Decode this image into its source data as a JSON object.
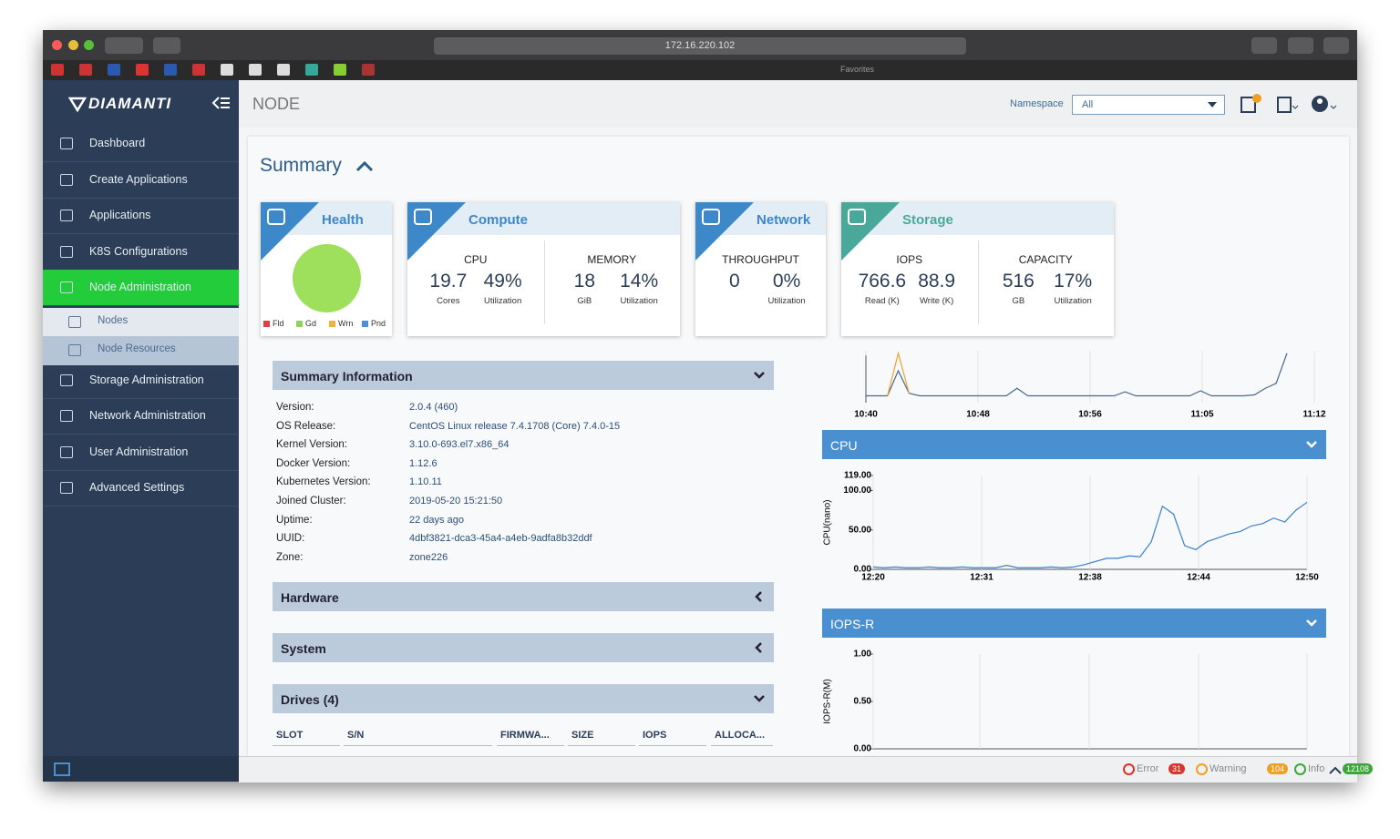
{
  "browser": {
    "url": "172.16.220.102",
    "favorites": "Favorites"
  },
  "sidebar": {
    "brand": "DIAMANTI",
    "items": [
      "Dashboard",
      "Create Applications",
      "Applications",
      "K8S Configurations",
      "Node Administration",
      "Nodes",
      "Node Resources",
      "Storage Administration",
      "Network Administration",
      "User Administration",
      "Advanced Settings"
    ]
  },
  "header": {
    "title": "NODE",
    "namespace_label": "Namespace",
    "namespace_value": "All"
  },
  "summary": {
    "title": "Summary",
    "health": {
      "title": "Health",
      "legend": [
        {
          "name": "Fld",
          "color": "#e04040"
        },
        {
          "name": "Gd",
          "color": "#8fd45a"
        },
        {
          "name": "Wrn",
          "color": "#f0b040"
        },
        {
          "name": "Pnd",
          "color": "#4a8fe0"
        }
      ]
    },
    "compute": {
      "title": "Compute",
      "groups": [
        {
          "name": "CPU",
          "stats": [
            {
              "value": "19.7",
              "unit": "Cores"
            },
            {
              "value": "49%",
              "unit": "Utilization"
            }
          ]
        },
        {
          "name": "MEMORY",
          "stats": [
            {
              "value": "18",
              "unit": "GiB"
            },
            {
              "value": "14%",
              "unit": "Utilization"
            }
          ]
        }
      ]
    },
    "network": {
      "title": "Network",
      "groups": [
        {
          "name": "THROUGHPUT",
          "stats": [
            {
              "value": "0",
              "unit": ""
            },
            {
              "value": "0%",
              "unit": "Utilization"
            }
          ]
        }
      ]
    },
    "storage": {
      "title": "Storage",
      "groups": [
        {
          "name": "IOPS",
          "stats": [
            {
              "value": "766.6",
              "unit": "Read (K)"
            },
            {
              "value": "88.9",
              "unit": "Write (K)"
            }
          ]
        },
        {
          "name": "CAPACITY",
          "stats": [
            {
              "value": "516",
              "unit": "GB"
            },
            {
              "value": "17%",
              "unit": "Utilization"
            }
          ]
        }
      ]
    }
  },
  "info": {
    "title": "Summary Information",
    "rows": [
      [
        "Version:",
        "2.0.4 (460)"
      ],
      [
        "OS Release:",
        "CentOS Linux release 7.4.1708 (Core) 7.4.0-15"
      ],
      [
        "Kernel Version:",
        "3.10.0-693.el7.x86_64"
      ],
      [
        "Docker Version:",
        "1.12.6"
      ],
      [
        "Kubernetes Version:",
        "1.10.11"
      ],
      [
        "Joined Cluster:",
        "2019-05-20 15:21:50"
      ],
      [
        "Uptime:",
        "22 days ago"
      ],
      [
        "UUID:",
        "4dbf3821-dca3-45a4-a4eb-9adfa8b32ddf"
      ],
      [
        "Zone:",
        "zone226"
      ]
    ]
  },
  "sections": [
    "Hardware",
    "System",
    "Drives (4)"
  ],
  "drives_columns": [
    "SLOT",
    "S/N",
    "FIRMWA...",
    "SIZE",
    "IOPS",
    "ALLOCA..."
  ],
  "mini_chart": {
    "type": "line",
    "x_labels": [
      "10:40",
      "10:48",
      "10:56",
      "11:05",
      "11:12"
    ],
    "ylim": [
      0,
      100
    ],
    "series": [
      {
        "color": "#4a6a90",
        "values": [
          10,
          10,
          10,
          60,
          15,
          10,
          10,
          10,
          10,
          10,
          10,
          10,
          10,
          10,
          25,
          10,
          10,
          10,
          10,
          10,
          10,
          10,
          10,
          10,
          18,
          10,
          10,
          10,
          10,
          10,
          10,
          20,
          10,
          10,
          10,
          10,
          12,
          25,
          35,
          95
        ]
      },
      {
        "color": "#f0a030",
        "values": [
          null,
          null,
          10,
          95,
          15,
          null,
          null,
          null,
          null,
          null,
          null,
          null,
          null,
          null,
          null,
          null,
          null,
          null,
          null,
          null,
          null,
          null,
          null,
          null,
          null,
          null,
          null,
          null,
          null,
          null,
          null,
          null,
          null,
          null,
          null,
          null,
          null,
          null,
          null,
          null
        ]
      }
    ]
  },
  "cpu_chart": {
    "type": "line",
    "title": "CPU",
    "y_label": "CPU(nano)",
    "color": "#3a7fd0",
    "x_labels": [
      "12:20",
      "12:31",
      "12:38",
      "12:44",
      "12:50"
    ],
    "ylim": [
      0,
      119
    ],
    "yticks": [
      {
        "value": 0,
        "label": "0.00"
      },
      {
        "value": 50,
        "label": "50.00"
      },
      {
        "value": 100,
        "label": "100.00"
      },
      {
        "value": 119,
        "label": "119.00"
      }
    ],
    "values": [
      3,
      2,
      3,
      2,
      2,
      3,
      2,
      2,
      3,
      2,
      2,
      2,
      5,
      2,
      2,
      2,
      3,
      2,
      3,
      6,
      10,
      14,
      14,
      17,
      16,
      35,
      80,
      70,
      30,
      25,
      35,
      40,
      45,
      48,
      55,
      58,
      65,
      60,
      75,
      85
    ]
  },
  "iops_chart": {
    "type": "line",
    "title": "IOPS-R",
    "y_label": "IOPS-R(M)",
    "ylim": [
      0,
      1
    ],
    "yticks": [
      {
        "value": 0,
        "label": "0.00"
      },
      {
        "value": 0.5,
        "label": "0.50"
      },
      {
        "value": 1,
        "label": "1.00"
      }
    ]
  },
  "status": [
    {
      "name": "Error",
      "count": "31",
      "color": "#d9342b"
    },
    {
      "name": "Warning",
      "count": "104",
      "color": "#f0a020"
    },
    {
      "name": "Info",
      "count": "12108",
      "color": "#3aa838"
    }
  ]
}
